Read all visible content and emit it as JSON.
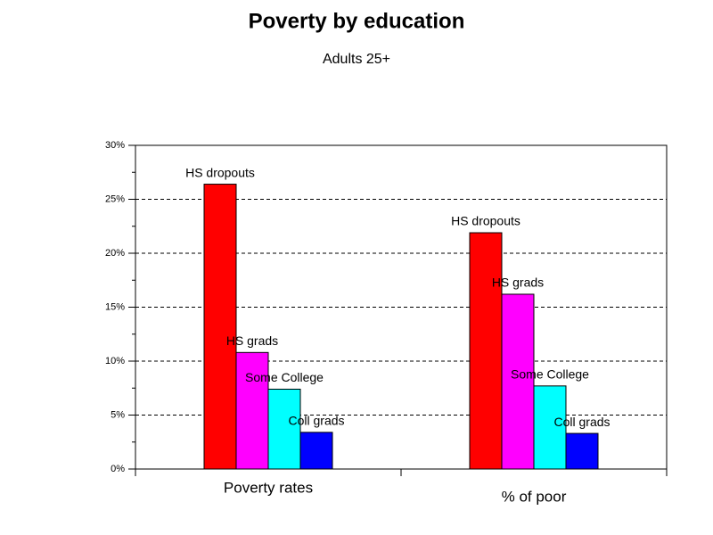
{
  "chart_data": {
    "type": "bar",
    "title": "Poverty by education",
    "subtitle": "Adults 25+",
    "categories": [
      "Poverty rates",
      "% of poor"
    ],
    "series": [
      {
        "name": "HS dropouts",
        "color": "#ff0000",
        "values": [
          26.4,
          21.9
        ]
      },
      {
        "name": "HS grads",
        "color": "#ff00ff",
        "values": [
          10.8,
          16.2
        ]
      },
      {
        "name": "Some College",
        "color": "#00ffff",
        "values": [
          7.4,
          7.7
        ]
      },
      {
        "name": "Coll grads",
        "color": "#0000ff",
        "values": [
          3.4,
          3.3
        ]
      }
    ],
    "ylim": [
      0,
      30
    ],
    "yticks": [
      {
        "value": 0,
        "label": "0%"
      },
      {
        "value": 5,
        "label": "5%"
      },
      {
        "value": 10,
        "label": "10%"
      },
      {
        "value": 15,
        "label": "15%"
      },
      {
        "value": 20,
        "label": "20%"
      },
      {
        "value": 25,
        "label": "25%"
      },
      {
        "value": 30,
        "label": "30%"
      }
    ],
    "grid": true
  }
}
